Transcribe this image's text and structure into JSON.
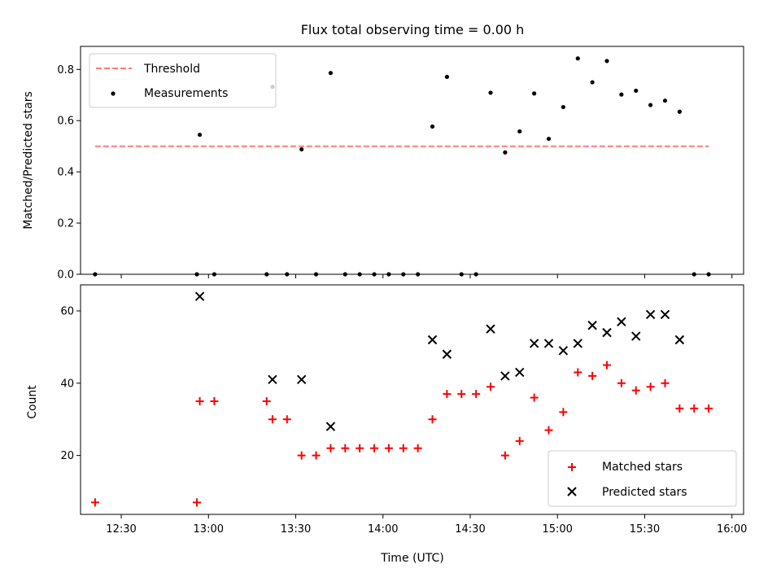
{
  "chart_data": [
    {
      "type": "scatter",
      "title": "Flux total observing time = 0.00 h",
      "ylabel": "Matched/Predicted stars",
      "xlabel": "",
      "xlim": [
        "12:16",
        "16:04"
      ],
      "ylim": [
        0,
        0.89
      ],
      "yticks": [
        "0.0",
        "0.2",
        "0.4",
        "0.6",
        "0.8"
      ],
      "grid": false,
      "legend_position": "top-left",
      "threshold": {
        "name": "Threshold",
        "value": 0.5,
        "x_range": [
          "12:21",
          "15:52"
        ],
        "color": "#ff7b7b",
        "style": "dashed"
      },
      "series": [
        {
          "name": "Measurements",
          "color": "#000000",
          "marker": "dot",
          "points": [
            {
              "x": "12:21",
              "y": 0.0
            },
            {
              "x": "12:56",
              "y": 0.0
            },
            {
              "x": "12:57",
              "y": 0.545
            },
            {
              "x": "13:02",
              "y": 0.0
            },
            {
              "x": "13:20",
              "y": 0.0
            },
            {
              "x": "13:22",
              "y": 0.732
            },
            {
              "x": "13:27",
              "y": 0.0
            },
            {
              "x": "13:32",
              "y": 0.488
            },
            {
              "x": "13:37",
              "y": 0.0
            },
            {
              "x": "13:42",
              "y": 0.786
            },
            {
              "x": "13:47",
              "y": 0.0
            },
            {
              "x": "13:52",
              "y": 0.0
            },
            {
              "x": "13:57",
              "y": 0.0
            },
            {
              "x": "14:02",
              "y": 0.0
            },
            {
              "x": "14:07",
              "y": 0.0
            },
            {
              "x": "14:12",
              "y": 0.0
            },
            {
              "x": "14:17",
              "y": 0.577
            },
            {
              "x": "14:22",
              "y": 0.771
            },
            {
              "x": "14:27",
              "y": 0.0
            },
            {
              "x": "14:32",
              "y": 0.0
            },
            {
              "x": "14:37",
              "y": 0.709
            },
            {
              "x": "14:42",
              "y": 0.476
            },
            {
              "x": "14:47",
              "y": 0.558
            },
            {
              "x": "14:52",
              "y": 0.706
            },
            {
              "x": "14:57",
              "y": 0.529
            },
            {
              "x": "15:02",
              "y": 0.653
            },
            {
              "x": "15:07",
              "y": 0.843
            },
            {
              "x": "15:12",
              "y": 0.75
            },
            {
              "x": "15:17",
              "y": 0.833
            },
            {
              "x": "15:22",
              "y": 0.702
            },
            {
              "x": "15:27",
              "y": 0.717
            },
            {
              "x": "15:32",
              "y": 0.661
            },
            {
              "x": "15:37",
              "y": 0.678
            },
            {
              "x": "15:42",
              "y": 0.635
            },
            {
              "x": "15:47",
              "y": 0.0
            },
            {
              "x": "15:52",
              "y": 0.0
            }
          ]
        }
      ]
    },
    {
      "type": "scatter",
      "title": "",
      "ylabel": "Count",
      "xlabel": "Time (UTC)",
      "xlim": [
        "12:16",
        "16:04"
      ],
      "ylim": [
        3.7,
        67.2
      ],
      "yticks": [
        "20",
        "40",
        "60"
      ],
      "xticks": [
        "12:30",
        "13:00",
        "13:30",
        "14:00",
        "14:30",
        "15:00",
        "15:30",
        "16:00"
      ],
      "grid": false,
      "legend_position": "bottom-right",
      "series": [
        {
          "name": "Matched stars",
          "color": "#ff0000",
          "marker": "plus",
          "points": [
            {
              "x": "12:21",
              "y": 7
            },
            {
              "x": "12:56",
              "y": 7
            },
            {
              "x": "12:57",
              "y": 35
            },
            {
              "x": "13:02",
              "y": 35
            },
            {
              "x": "13:20",
              "y": 35
            },
            {
              "x": "13:22",
              "y": 30
            },
            {
              "x": "13:27",
              "y": 30
            },
            {
              "x": "13:32",
              "y": 20
            },
            {
              "x": "13:37",
              "y": 20
            },
            {
              "x": "13:42",
              "y": 22
            },
            {
              "x": "13:47",
              "y": 22
            },
            {
              "x": "13:52",
              "y": 22
            },
            {
              "x": "13:57",
              "y": 22
            },
            {
              "x": "14:02",
              "y": 22
            },
            {
              "x": "14:07",
              "y": 22
            },
            {
              "x": "14:12",
              "y": 22
            },
            {
              "x": "14:17",
              "y": 30
            },
            {
              "x": "14:22",
              "y": 37
            },
            {
              "x": "14:27",
              "y": 37
            },
            {
              "x": "14:32",
              "y": 37
            },
            {
              "x": "14:37",
              "y": 39
            },
            {
              "x": "14:42",
              "y": 20
            },
            {
              "x": "14:47",
              "y": 24
            },
            {
              "x": "14:52",
              "y": 36
            },
            {
              "x": "14:57",
              "y": 27
            },
            {
              "x": "15:02",
              "y": 32
            },
            {
              "x": "15:07",
              "y": 43
            },
            {
              "x": "15:12",
              "y": 42
            },
            {
              "x": "15:17",
              "y": 45
            },
            {
              "x": "15:22",
              "y": 40
            },
            {
              "x": "15:27",
              "y": 38
            },
            {
              "x": "15:32",
              "y": 39
            },
            {
              "x": "15:37",
              "y": 40
            },
            {
              "x": "15:42",
              "y": 33
            },
            {
              "x": "15:47",
              "y": 33
            },
            {
              "x": "15:52",
              "y": 33
            }
          ]
        },
        {
          "name": "Predicted stars",
          "color": "#000000",
          "marker": "x",
          "points": [
            {
              "x": "12:57",
              "y": 64
            },
            {
              "x": "13:22",
              "y": 41
            },
            {
              "x": "13:32",
              "y": 41
            },
            {
              "x": "13:42",
              "y": 28
            },
            {
              "x": "14:17",
              "y": 52
            },
            {
              "x": "14:22",
              "y": 48
            },
            {
              "x": "14:37",
              "y": 55
            },
            {
              "x": "14:42",
              "y": 42
            },
            {
              "x": "14:47",
              "y": 43
            },
            {
              "x": "14:52",
              "y": 51
            },
            {
              "x": "14:57",
              "y": 51
            },
            {
              "x": "15:02",
              "y": 49
            },
            {
              "x": "15:07",
              "y": 51
            },
            {
              "x": "15:12",
              "y": 56
            },
            {
              "x": "15:17",
              "y": 54
            },
            {
              "x": "15:22",
              "y": 57
            },
            {
              "x": "15:27",
              "y": 53
            },
            {
              "x": "15:32",
              "y": 59
            },
            {
              "x": "15:37",
              "y": 59
            },
            {
              "x": "15:42",
              "y": 52
            }
          ]
        }
      ]
    }
  ]
}
